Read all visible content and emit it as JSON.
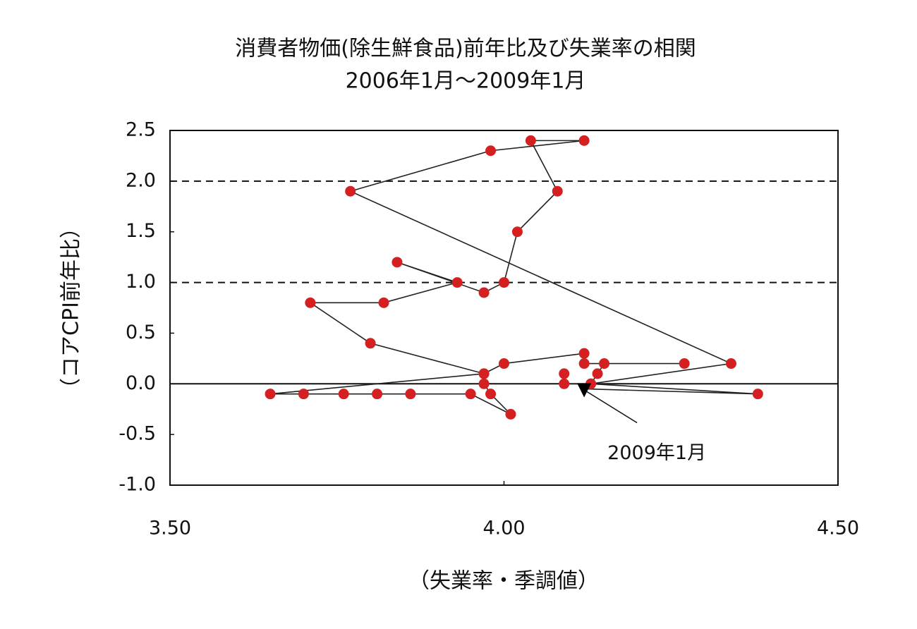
{
  "chart_data": {
    "type": "scatter",
    "title": "消費者物価(除生鮮食品)前年比及び失業率の相関",
    "subtitle": "2006年1月～2009年1月",
    "x_label": "（失業率・季調値）",
    "y_label": "（コアCPI前年比）",
    "xlim": [
      3.5,
      4.5
    ],
    "xticks": [
      {
        "value": 3.5,
        "label": "3.50"
      },
      {
        "value": 4,
        "label": "4.00"
      },
      {
        "value": 4.5,
        "label": "4.50"
      }
    ],
    "ylim": [
      -1,
      2.5
    ],
    "yticks": [
      {
        "value": -1,
        "label": "-1.0"
      },
      {
        "value": -0.5,
        "label": "-0.5"
      },
      {
        "value": 0,
        "label": "0.0"
      },
      {
        "value": 0.5,
        "label": "0.5"
      },
      {
        "value": 1,
        "label": "1.0"
      },
      {
        "value": 1.5,
        "label": "1.5"
      },
      {
        "value": 2,
        "label": "2.0"
      },
      {
        "value": 2.5,
        "label": "2.5"
      }
    ],
    "hlines": [
      {
        "value": 0,
        "style": "solid"
      },
      {
        "value": 1,
        "style": "dashed"
      },
      {
        "value": 2,
        "style": "dashed"
      }
    ],
    "series": [
      {
        "marker_color": "#d42020",
        "line_color": "#222222",
        "last_marker": "triangle",
        "x": [
          4.09,
          4.09,
          4.13,
          4.14,
          4.15,
          4.27,
          4.12,
          4.12,
          4.0,
          3.97,
          3.97,
          3.98,
          4.01,
          3.95,
          3.86,
          3.81,
          3.76,
          3.7,
          3.65,
          3.97,
          3.8,
          3.71,
          3.82,
          3.93,
          3.84,
          3.97,
          4.0,
          4.02,
          4.08,
          4.04,
          4.12,
          3.98,
          3.77,
          4.34,
          4.13,
          4.38,
          4.12
        ],
        "values": [
          0.1,
          0.0,
          0.0,
          0.1,
          0.2,
          0.2,
          0.2,
          0.3,
          0.2,
          0.1,
          0.0,
          -0.1,
          -0.3,
          -0.1,
          -0.1,
          -0.1,
          -0.1,
          -0.1,
          -0.1,
          0.1,
          0.4,
          0.8,
          0.8,
          1.0,
          1.2,
          0.9,
          1.0,
          1.5,
          1.9,
          2.4,
          2.4,
          2.3,
          1.9,
          0.2,
          0.0,
          -0.1,
          -0.05
        ]
      }
    ],
    "annotation": {
      "text": "2009年1月",
      "point_index": 36
    }
  }
}
